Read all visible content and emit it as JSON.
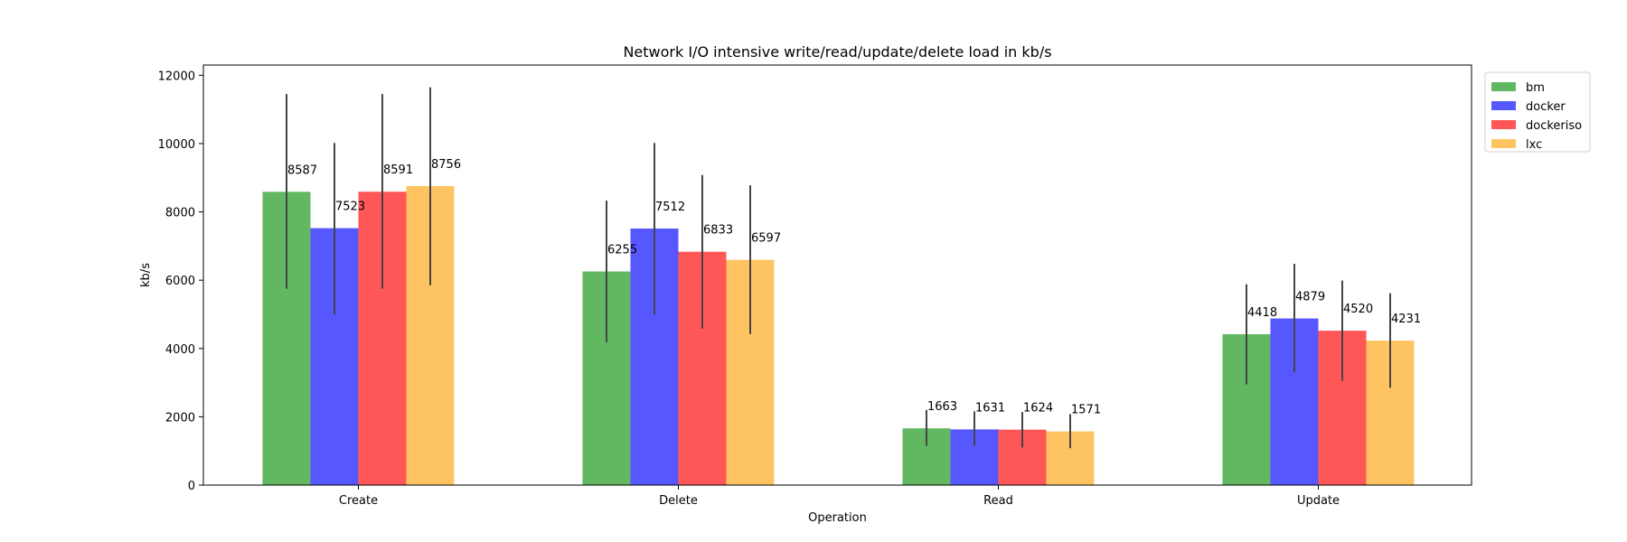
{
  "chart_data": {
    "type": "bar",
    "title": "Network I/O intensive write/read/update/delete load in kb/s",
    "xlabel": "Operation",
    "ylabel": "kb/s",
    "ylim": [
      0,
      12300
    ],
    "yticks": [
      0,
      2000,
      4000,
      6000,
      8000,
      10000,
      12000
    ],
    "categories": [
      "Create",
      "Delete",
      "Read",
      "Update"
    ],
    "legend_position": "outside-top-right",
    "grid": false,
    "series": [
      {
        "name": "bm",
        "color": "#2ca02c",
        "values": [
          8587,
          6255,
          1663,
          4418
        ],
        "labels": [
          "8587",
          "6255",
          "1663",
          "4418"
        ],
        "err_low": [
          5750,
          4180,
          1150,
          2950
        ],
        "err_high": [
          11450,
          8330,
          2200,
          5880
        ]
      },
      {
        "name": "docker",
        "color": "#1f1fff",
        "values": [
          7523,
          7512,
          1631,
          4879
        ],
        "labels": [
          "7523",
          "7512",
          "1631",
          "4879"
        ],
        "err_low": [
          5000,
          5000,
          1150,
          3300
        ],
        "err_high": [
          10020,
          10020,
          2160,
          6480
        ]
      },
      {
        "name": "dockeriso",
        "color": "#ff1f1f",
        "values": [
          8591,
          6833,
          1624,
          4520
        ],
        "labels": [
          "8591",
          "6833",
          "1624",
          "4520"
        ],
        "err_low": [
          5750,
          4580,
          1100,
          3050
        ],
        "err_high": [
          11450,
          9080,
          2140,
          5990
        ]
      },
      {
        "name": "lxc",
        "color": "#ffb02e",
        "values": [
          8756,
          6597,
          1571,
          4231
        ],
        "labels": [
          "8756",
          "6597",
          "1571",
          "4231"
        ],
        "err_low": [
          5850,
          4420,
          1080,
          2850
        ],
        "err_high": [
          11650,
          8780,
          2080,
          5620
        ]
      }
    ]
  }
}
